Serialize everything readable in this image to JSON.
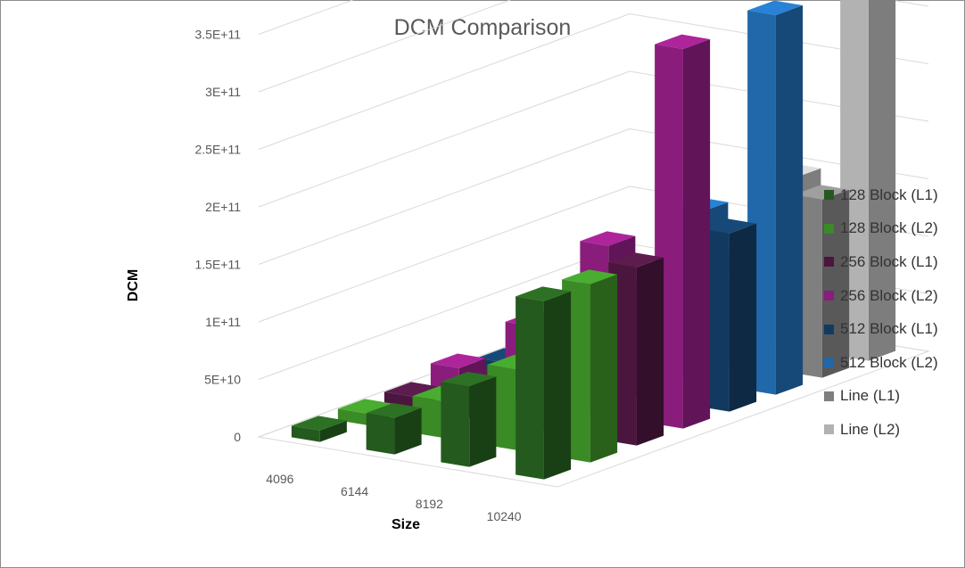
{
  "chart_data": {
    "type": "bar",
    "title": "DCM Comparison",
    "xlabel": "Size",
    "ylabel": "DCM",
    "categories": [
      "4096",
      "6144",
      "8192",
      "10240"
    ],
    "ylim": [
      0,
      350000000000
    ],
    "y_ticks": [
      "0",
      "5E+10",
      "1E+11",
      "1.5E+11",
      "2E+11",
      "2.5E+11",
      "3E+11",
      "3.5E+11"
    ],
    "legend_position": "right",
    "grid": true,
    "series": [
      {
        "name": "128 Block (L1)",
        "color": "#245a1d",
        "values": [
          10000000000,
          32000000000,
          70000000000,
          155000000000
        ]
      },
      {
        "name": "128 Block (L2)",
        "color": "#3a8a26",
        "values": [
          10000000000,
          32000000000,
          70000000000,
          155000000000
        ]
      },
      {
        "name": "256 Block (L1)",
        "color": "#4a163e",
        "values": [
          10000000000,
          32000000000,
          70000000000,
          155000000000
        ]
      },
      {
        "name": "256 Block (L2)",
        "color": "#8a1d7c",
        "values": [
          20000000000,
          67000000000,
          148000000000,
          330000000000
        ]
      },
      {
        "name": "512 Block (L1)",
        "color": "#123a60",
        "values": [
          10000000000,
          32000000000,
          70000000000,
          155000000000
        ]
      },
      {
        "name": "512 Block (L2)",
        "color": "#2068aa",
        "values": [
          20000000000,
          67000000000,
          148000000000,
          330000000000
        ]
      },
      {
        "name": "Line (L1)",
        "color": "#7f7f7f",
        "values": [
          10000000000,
          32000000000,
          70000000000,
          155000000000
        ]
      },
      {
        "name": "Line (L2)",
        "color": "#b2b2b2",
        "values": [
          20000000000,
          67000000000,
          148000000000,
          330000000000
        ]
      }
    ]
  }
}
